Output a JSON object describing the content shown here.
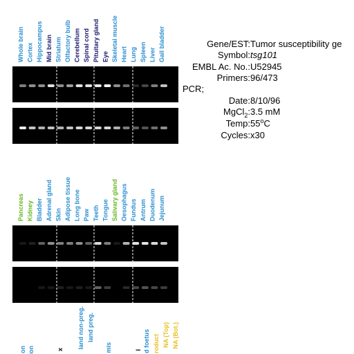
{
  "panel1": {
    "lanes": [
      {
        "label": "Whole brain",
        "color": "#2a8fd0"
      },
      {
        "label": "Cortex",
        "color": "#2a8fd0"
      },
      {
        "label": "Hippocampus",
        "color": "#2a8fd0"
      },
      {
        "label": "Mid brain",
        "color": "#1a1a70"
      },
      {
        "label": "Striatum",
        "color": "#2a8fd0"
      },
      {
        "label": "Olfactory bulb",
        "color": "#2a8fd0"
      },
      {
        "label": "Cerebellum",
        "color": "#1a1a70"
      },
      {
        "label": "Spinal cord",
        "color": "#1a1a70"
      },
      {
        "label": "Pituitary gland",
        "color": "#1a1a70"
      },
      {
        "label": "Eye",
        "color": "#1a1a70"
      },
      {
        "label": "Skeletal muscle",
        "color": "#2a8fd0"
      },
      {
        "label": "Heart",
        "color": "#2a8fd0"
      },
      {
        "label": "Lung",
        "color": "#2a8fd0"
      },
      {
        "label": "Spleen",
        "color": "#2a8fd0"
      },
      {
        "label": "Liver",
        "color": "#2a8fd0"
      },
      {
        "label": "Gall bladder",
        "color": "#2a8fd0"
      }
    ]
  },
  "info": {
    "gene": {
      "label": "Gene/EST:",
      "value": "Tumor susceptibility ge"
    },
    "symbol": {
      "label": "Symbol:",
      "value": "tsg101"
    },
    "embl": {
      "label": "EMBL Ac. No.:",
      "value": "U52945"
    },
    "primers": {
      "label": "Primers:",
      "value": "96/473"
    },
    "pcr": "PCR;",
    "date": {
      "label": "Date:",
      "value": "8/10/96"
    },
    "mgcl": {
      "label": "MgCl",
      "sub": "2",
      "colon": ":",
      "value": "3.5 mM"
    },
    "temp": {
      "label": "Temp:",
      "value": "55",
      "sup": "o",
      "unit": "C"
    },
    "cycles": {
      "label": "Cycles:",
      "value": "x30"
    }
  },
  "panel2": {
    "lanes": [
      {
        "label": "Pancreas",
        "color": "#66b820"
      },
      {
        "label": "Kidney",
        "color": "#66b820"
      },
      {
        "label": "Bladder",
        "color": "#2a8fd0"
      },
      {
        "label": "Adrenal gland",
        "color": "#2a8fd0"
      },
      {
        "label": "Skin",
        "color": "#2a8fd0"
      },
      {
        "label": "Adipose tissue",
        "color": "#2a8fd0"
      },
      {
        "label": "Long bone",
        "color": "#2a8fd0"
      },
      {
        "label": "Paw",
        "color": "#2a8fd0"
      },
      {
        "label": "Teeth",
        "color": "#2a8fd0"
      },
      {
        "label": "Tongue",
        "color": "#2a8fd0"
      },
      {
        "label": "Salivary gland",
        "color": "#66b820"
      },
      {
        "label": "Oesophagus",
        "color": "#2a8fd0"
      },
      {
        "label": "Fundus",
        "color": "#2a8fd0"
      },
      {
        "label": "Antrum",
        "color": "#2a8fd0"
      },
      {
        "label": "Duodenum",
        "color": "#2a8fd0"
      },
      {
        "label": "Jejunum",
        "color": "#2a8fd0"
      }
    ]
  },
  "panel3": {
    "lanes": [
      {
        "label": "on",
        "color": "#2a8fd0"
      },
      {
        "label": "lon",
        "color": "#2a8fd0"
      },
      {
        "label": "x",
        "color": "#000000"
      },
      {
        "label": "land non-preg.",
        "color": "#2a8fd0"
      },
      {
        "label": "land preg.",
        "color": "#2a8fd0"
      },
      {
        "label": "mis",
        "color": "#2a8fd0"
      },
      {
        "label": "l",
        "color": "#000000"
      },
      {
        "label": "d foetus",
        "color": "#2a8fd0"
      },
      {
        "label": "roduct",
        "color": "#e8c020"
      },
      {
        "label": "NA (Top)",
        "color": "#e8c020"
      },
      {
        "label": "NA (Bot.)",
        "color": "#e8c020"
      }
    ]
  }
}
